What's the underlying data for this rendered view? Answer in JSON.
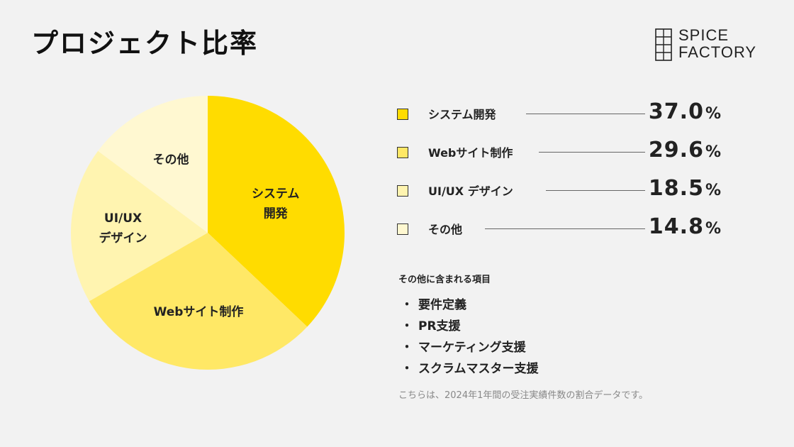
{
  "header": {
    "title": "プロジェクト比率"
  },
  "logo": {
    "line1": "SPICE",
    "line2": "FACTORY",
    "icon": "spice-factory-logo-icon"
  },
  "chart_data": {
    "type": "pie",
    "title": "",
    "slices": [
      {
        "label": "システム開発",
        "pie_lines": [
          "システム",
          "開発"
        ],
        "value": 37.0,
        "color": "#ffdc00"
      },
      {
        "label": "Webサイト制作",
        "pie_lines": [
          "Webサイト制作"
        ],
        "value": 29.6,
        "color": "#ffe866"
      },
      {
        "label": "UI/UX デザイン",
        "pie_lines": [
          "UI/UX",
          "デザイン"
        ],
        "value": 18.5,
        "color": "#fff4b0"
      },
      {
        "label": "その他",
        "pie_lines": [
          "その他"
        ],
        "value": 14.8,
        "color": "#fff8d1"
      }
    ],
    "unit": "%",
    "start_angle_deg": 0,
    "direction": "clockwise",
    "legend_position": "right"
  },
  "legend": {
    "rows": [
      {
        "label": "システム開発",
        "value": "37.0",
        "unit": "%"
      },
      {
        "label": "Webサイト制作",
        "value": "29.6",
        "unit": "%"
      },
      {
        "label": "UI/UX デザイン",
        "value": "18.5",
        "unit": "%"
      },
      {
        "label": "その他",
        "value": "14.8",
        "unit": "%"
      }
    ]
  },
  "others": {
    "title": "その他に含まれる項目",
    "bullet": "・",
    "items": [
      "要件定義",
      "PR支援",
      "マーケティング支援",
      "スクラムマスター支援"
    ]
  },
  "footnote": "こちらは、2024年1年間の受注実績件数の割合データです。"
}
